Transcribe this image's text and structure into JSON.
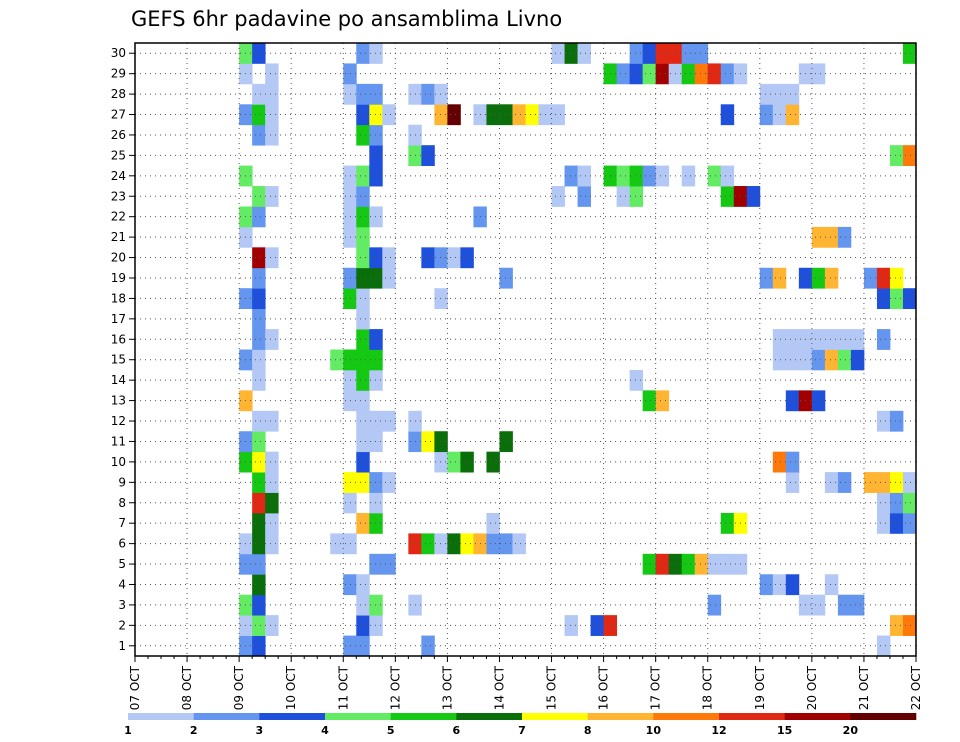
{
  "chart_data": {
    "type": "heatmap",
    "title": "GEFS 6hr padavine po ansamblima Livno",
    "xlabel": "",
    "ylabel": "",
    "x_tick_labels": [
      "07 OCT",
      "08 OCT",
      "09 OCT",
      "10 OCT",
      "11 OCT",
      "12 OCT",
      "13 OCT",
      "14 OCT",
      "15 OCT",
      "16 OCT",
      "17 OCT",
      "18 OCT",
      "19 OCT",
      "20 OCT",
      "21 OCT",
      "22 OCT"
    ],
    "y_tick_labels": [
      "1",
      "2",
      "3",
      "4",
      "5",
      "6",
      "7",
      "8",
      "9",
      "10",
      "11",
      "12",
      "13",
      "14",
      "15",
      "16",
      "17",
      "18",
      "19",
      "20",
      "21",
      "22",
      "23",
      "24",
      "25",
      "26",
      "27",
      "28",
      "29",
      "30"
    ],
    "x_range_days": [
      0,
      15
    ],
    "steps_per_day": 4,
    "y_range": [
      0,
      30
    ],
    "grid": true,
    "colorbar": {
      "labels": [
        "1",
        "2",
        "3",
        "4",
        "5",
        "6",
        "7",
        "8",
        "10",
        "12",
        "15",
        "20"
      ],
      "colors": [
        "#b4c8f5",
        "#6496f0",
        "#1e50dc",
        "#64eb64",
        "#14c814",
        "#0a6e0a",
        "#ffff00",
        "#ffb432",
        "#ff780a",
        "#e12814",
        "#a00000",
        "#640000"
      ],
      "range_labels": [
        "1-2",
        "2-3",
        "3-4",
        "4-5",
        "5-6",
        "6-7",
        "7-8",
        "8-10",
        "10-12",
        "12-15",
        "15-20",
        ">20"
      ]
    },
    "cells_by_member": {
      "1": "9.0:2,9.25:3,11.0:2,11.25:2,12.5:2,21.25:1",
      "2": "9.0:1,9.25:4,9.5:1,11.25:3,11.5:1,15.25:1,15.75:3,16.0:10,21.5:8,21.75:9",
      "3": "9.0:4,9.25:3,11.25:1,11.5:4,12.25:1,18.0:2,19.75:1,20.0:1,20.5:2,20.75:2",
      "4": "9.25:6,11.0:2,11.25:1,19.0:2,19.25:1,19.5:3,20.25:1",
      "5": "9.0:2,9.25:2,11.5:2,11.75:2,16.75:5,17.0:10,17.25:6,17.5:5,17.75:8,18.0:1,18.25:1,18.5:1",
      "6": "9.0:1,9.25:6,9.5:1,10.75:1,11.0:1,12.25:10,12.5:5,12.75:1,13.0:6,13.25:7,13.5:8,13.75:2,14.0:2,14.25:1",
      "7": "9.25:6,9.5:1,11.25:8,11.5:5,13.75:1,18.25:5,18.5:7,21.25:1,21.5:3,21.75:2",
      "8": "9.25:10,9.5:6,11.0:1,11.5:1,21.25:1,21.5:2,21.75:4",
      "9": "9.25:5,9.5:1,11.0:7,11.25:7,11.5:2,11.75:1,19.5:1,20.25:1,20.5:2,21.0:8,21.25:8,21.5:7,21.75:1",
      "10": "9.0:5,9.25:7,9.5:1,11.25:3,12.75:1,13.0:4,13.25:6,13.75:6,19.25:9,19.5:2",
      "11": "9.0:2,9.25:4,11.25:1,11.5:1,12.25:2,12.5:7,12.75:6,14.0:6",
      "12": "9.25:1,9.5:1,11.25:1,11.5:1,11.75:1,12.25:1,21.25:1,21.5:2",
      "13": "9.0:8,11.0:1,11.25:1,16.75:5,17.0:8,19.5:3,19.75:11,20.0:3",
      "14": "9.25:1,11.0:1,11.25:5,11.5:1,16.5:1",
      "15": "9.0:2,9.25:1,10.75:4,11.0:5,11.25:5,11.5:5,19.25:1,19.5:1,19.75:1,20.0:2,20.25:8,20.5:4,20.75:3",
      "16": "9.25:2,9.5:1,11.25:5,11.5:3,19.25:1,19.5:1,19.75:1,20.0:1,20.25:1,20.5:1,20.75:1,21.25:2",
      "17": "9.25:2,11.25:1",
      "18": "9.0:2,9.25:3,11.0:5,11.25:1,12.75:1,21.25:3,21.5:4,21.75:3",
      "19": "9.25:2,11.0:2,11.25:6,11.5:6,11.75:1,14.0:2,19.0:2,19.25:8,19.75:3,20.0:5,20.25:8,21.0:2,21.25:10,21.5:7",
      "20": "9.25:11,9.5:1,11.25:4,11.5:3,11.75:1,12.5:3,12.75:2,13.0:1,13.25:3",
      "21": "9.0:1,11.0:1,11.25:4,20.0:8,20.25:8,20.5:2",
      "22": "9.0:4,9.25:2,11.0:1,11.25:5,11.5:1,13.5:2",
      "23": "9.25:4,9.5:1,11.0:1,11.25:2,15.0:1,15.5:2,16.25:1,16.5:4,18.25:5,18.5:11,18.75:3",
      "24": "9.0:4,11.0:1,11.25:4,11.5:3,15.25:2,15.5:1,16.0:5,16.25:4,16.5:5,16.75:2,17.0:1,17.5:1,18.0:4,18.25:1",
      "25": "11.5:3,12.25:4,12.5:3,21.5:4,21.75:9",
      "26": "9.25:2,9.5:1,11.25:5,11.5:2,12.25:1",
      "27": "9.0:2,9.25:5,9.5:1,11.25:3,11.5:7,11.75:1,12.75:8,13.0:12,13.5:1,13.75:6,14.0:6,14.25:8,14.5:7,14.75:1,15.0:1,18.25:3,19.0:2,19.25:1,19.5:8",
      "28": "9.25:1,9.5:1,11.0:1,11.25:2,11.5:2,12.25:1,12.5:2,12.75:1,19.0:1,19.25:1,19.5:1",
      "29": "9.0:1,9.5:1,11.0:2,16.0:5,16.25:2,16.5:3,16.75:4,17.0:11,17.25:1,17.5:5,17.75:9,18.0:10,18.25:2,18.5:1,19.75:1,20.0:1",
      "30": "9.0:4,9.25:3,11.25:2,11.5:1,15.0:1,15.25:6,15.5:1,16.5:2,16.75:3,17.0:10,17.25:10,17.5:2,17.75:2,21.75:5"
    }
  }
}
